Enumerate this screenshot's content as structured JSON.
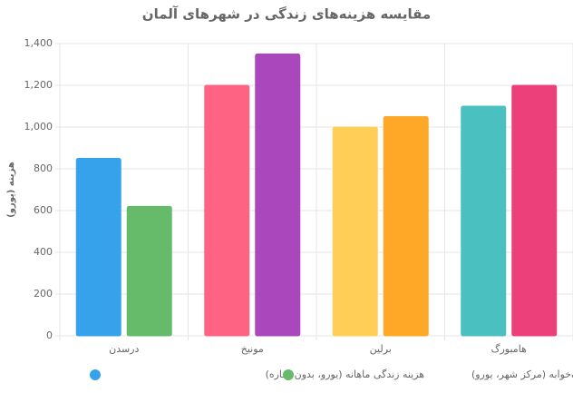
{
  "chart_data": {
    "type": "bar",
    "title": "مقایسه هزینه‌های زندگی در شهرهای آلمان",
    "ylabel": "هزینه (یورو)",
    "categories": [
      "درسدن",
      "مونیخ",
      "برلین",
      "هامبورگ"
    ],
    "series": [
      {
        "name": "هزینه زندگی ماهانه (یورو، بدون اجاره)",
        "colors": [
          "#36a2eb",
          "#ff6384",
          "#ffce56",
          "#4bc0c0"
        ],
        "values": [
          850,
          1200,
          1000,
          1100
        ]
      },
      {
        "name": "اجاره آپارتمان یک‌خوابه (مرکز شهر، یورو)",
        "colors": [
          "#66bb6a",
          "#ab47bc",
          "#ffa726",
          "#ec407a"
        ],
        "values": [
          620,
          1350,
          1050,
          1200
        ]
      }
    ],
    "ylim": [
      0,
      1400
    ],
    "yticks": [
      0,
      200,
      400,
      600,
      800,
      {
        "value": 1000,
        "label": "1,000"
      },
      {
        "value": 1200,
        "label": "1,200"
      },
      {
        "value": 1400,
        "label": "1,400"
      }
    ],
    "grid": true
  }
}
